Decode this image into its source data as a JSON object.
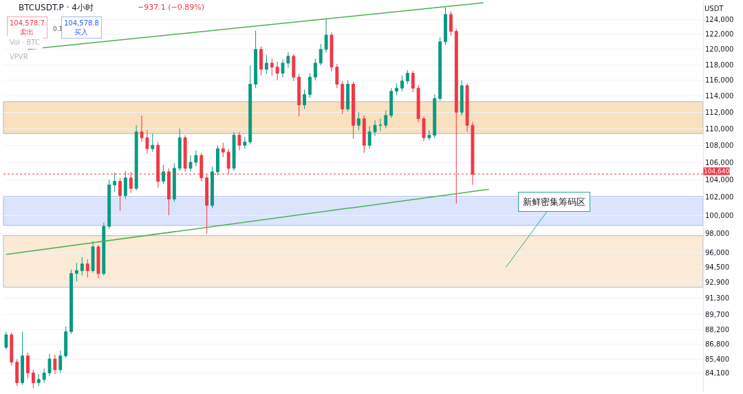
{
  "chart_data": {
    "type": "candlestick",
    "title": "BTCUSDT.P · 4小时",
    "subtitle": "−937.1 (−0.89%)",
    "ylabel": "USDT",
    "annotations": [
      "104,578.7\n卖出",
      "0.1",
      "104,578.8\n买入",
      "Vol · BTC",
      "VPVR",
      "新鲜密集筹码区"
    ],
    "categories": [
      null,
      null,
      null,
      null,
      null,
      null,
      null,
      null,
      null,
      null,
      null,
      null,
      null,
      null,
      null,
      null,
      null,
      null,
      null,
      null,
      null,
      null,
      null,
      null,
      null,
      null,
      null,
      null,
      null,
      null,
      null,
      null,
      null,
      null,
      null,
      null,
      null,
      null,
      null,
      null,
      null,
      null,
      null,
      null,
      null,
      null,
      null,
      null,
      null,
      null,
      null,
      null,
      null,
      null,
      null,
      null,
      null,
      null,
      null,
      null,
      null,
      null,
      null,
      null,
      null,
      null,
      null,
      null,
      null,
      null,
      null,
      null,
      null,
      null,
      null,
      null,
      null,
      null,
      null,
      null,
      null,
      null,
      null,
      null,
      null,
      null,
      null,
      null,
      null,
      null,
      null,
      null,
      null,
      null,
      null,
      null,
      null,
      null,
      null,
      null,
      null,
      null,
      null,
      null,
      null,
      null,
      null,
      null,
      null,
      null,
      null,
      null,
      null,
      null,
      null,
      null,
      null,
      null,
      null,
      null,
      null,
      null,
      null,
      null,
      null,
      null,
      null,
      null,
      null
    ],
    "colors": [
      "#089981",
      "#f23645",
      "#f23645",
      "#089981",
      "#f23645",
      "#f23645",
      "#089981",
      "#089981",
      "#089981",
      "#f23645",
      "#089981",
      "#089981",
      "#089981",
      "#089981",
      "#089981",
      "#f23645",
      "#089981",
      "#f23645",
      "#089981",
      "#089981",
      "#089981",
      "#f23645",
      "#089981",
      "#f23645",
      "#089981",
      "#f23645",
      "#f23645",
      "#089981",
      "#f23645",
      "#089981",
      "#f23645",
      "#089981",
      "#089981",
      "#f23645",
      "#089981",
      "#089981",
      "#f23645",
      "#f23645",
      "#089981",
      "#089981",
      "#f23645",
      "#f23645",
      "#089981",
      "#f23645",
      "#089981",
      "#089981",
      "#089981",
      "#f23645",
      "#089981",
      "#f23645",
      "#f23645",
      "#089981",
      "#089981",
      "#f23645",
      "#f23645",
      "#089981",
      "#089981",
      "#089981",
      "#089981",
      "#089981",
      "#f23645",
      "#f23645",
      "#f23645",
      "#089981",
      "#f23645",
      "#089981",
      "#f23645",
      "#089981",
      "#089981",
      "#089981",
      "#089981",
      "#089981",
      "#089981",
      "#089981",
      "#089981",
      "#f23645",
      "#f23645",
      "#f23645",
      "#089981",
      "#089981",
      "#089981",
      "#089981",
      "#f23645",
      "#f23645",
      "#089981",
      "#f23645",
      "#f23645",
      null,
      null,
      null,
      null,
      null,
      null,
      null,
      null,
      null,
      null,
      null,
      null,
      null,
      null,
      null,
      null,
      null,
      null,
      null,
      null,
      null,
      null,
      null,
      null,
      null,
      null,
      null,
      null,
      null,
      null,
      null,
      null,
      null,
      null,
      null,
      null,
      null,
      null,
      null,
      null,
      null,
      null
    ],
    "ohlc": [
      [
        86500,
        88000,
        86300,
        87700
      ],
      [
        87700,
        87900,
        84800,
        85100
      ],
      [
        85100,
        85400,
        82900,
        83200
      ],
      [
        83200,
        88000,
        83000,
        85700
      ],
      [
        85700,
        86000,
        83600,
        84100
      ],
      [
        84100,
        84400,
        82700,
        83200
      ],
      [
        83200,
        84000,
        82900,
        83500
      ],
      [
        83500,
        84500,
        83200,
        84100
      ],
      [
        84100,
        85900,
        83800,
        85400
      ],
      [
        85400,
        85800,
        84000,
        84400
      ],
      [
        84400,
        86200,
        84100,
        85700
      ],
      [
        85700,
        88500,
        85500,
        88000
      ],
      [
        88000,
        94200,
        87800,
        93800
      ],
      [
        93800,
        94900,
        93000,
        94100
      ],
      [
        94100,
        95500,
        93600,
        94800
      ],
      [
        94800,
        95300,
        93400,
        94100
      ],
      [
        94100,
        97200,
        93900,
        96600
      ],
      [
        96600,
        96800,
        93300,
        93800
      ],
      [
        93800,
        99200,
        93600,
        98800
      ],
      [
        98800,
        104000,
        98500,
        103400
      ],
      [
        103400,
        104800,
        102600,
        103800
      ],
      [
        103800,
        104200,
        100500,
        102200
      ],
      [
        102200,
        105000,
        101800,
        104200
      ],
      [
        104200,
        104900,
        102500,
        103000
      ],
      [
        103000,
        110400,
        102800,
        109600
      ],
      [
        109600,
        111600,
        108400,
        108900
      ],
      [
        108900,
        109800,
        107000,
        107600
      ],
      [
        107600,
        109400,
        107200,
        108000
      ],
      [
        108000,
        108400,
        103100,
        103800
      ],
      [
        103800,
        105700,
        103500,
        104900
      ],
      [
        104900,
        105300,
        100000,
        101800
      ],
      [
        101800,
        105900,
        101500,
        105300
      ],
      [
        105300,
        110000,
        105000,
        108900
      ],
      [
        108900,
        109200,
        104900,
        105300
      ],
      [
        105300,
        106800,
        104900,
        106000
      ],
      [
        106000,
        107400,
        105500,
        106800
      ],
      [
        106800,
        107100,
        103800,
        104200
      ],
      [
        104200,
        104600,
        98000,
        101100
      ],
      [
        101100,
        105500,
        100800,
        104900
      ],
      [
        104900,
        108000,
        104500,
        107600
      ],
      [
        107600,
        108300,
        106600,
        107200
      ],
      [
        107200,
        107600,
        104600,
        105300
      ],
      [
        105300,
        109600,
        105000,
        109200
      ],
      [
        109200,
        109600,
        107400,
        108000
      ],
      [
        108000,
        109000,
        107600,
        108400
      ],
      [
        108400,
        117900,
        108100,
        115500
      ],
      [
        115500,
        122500,
        115000,
        120000
      ],
      [
        120000,
        120400,
        116600,
        117400
      ],
      [
        117400,
        119300,
        116800,
        118200
      ],
      [
        118200,
        118800,
        116600,
        117700
      ],
      [
        117700,
        118400,
        116000,
        116900
      ],
      [
        116900,
        118700,
        116400,
        118200
      ],
      [
        118200,
        119600,
        117600,
        119100
      ],
      [
        119100,
        119400,
        115900,
        116400
      ],
      [
        116400,
        116800,
        111500,
        112900
      ],
      [
        112900,
        114800,
        112400,
        114200
      ],
      [
        114200,
        116900,
        113800,
        116400
      ],
      [
        116400,
        118800,
        116000,
        118200
      ],
      [
        118200,
        120700,
        117900,
        120000
      ],
      [
        120000,
        124100,
        119600,
        121900
      ],
      [
        121900,
        122300,
        117100,
        117700
      ],
      [
        117700,
        118100,
        115000,
        115500
      ],
      [
        115500,
        115900,
        111800,
        112400
      ],
      [
        112400,
        116000,
        112100,
        115500
      ],
      [
        115500,
        115800,
        108800,
        110400
      ],
      [
        110400,
        112000,
        109800,
        111200
      ],
      [
        111200,
        111600,
        107100,
        108000
      ],
      [
        108000,
        110300,
        107600,
        109600
      ],
      [
        109600,
        111000,
        109100,
        110400
      ],
      [
        110400,
        111200,
        109700,
        110400
      ],
      [
        110400,
        112200,
        110000,
        111600
      ],
      [
        111600,
        115000,
        111300,
        114600
      ],
      [
        114600,
        115600,
        114100,
        115000
      ],
      [
        115000,
        116600,
        114600,
        115900
      ],
      [
        115900,
        117300,
        115500,
        116900
      ],
      [
        116900,
        117200,
        114500,
        115000
      ],
      [
        115000,
        115400,
        110800,
        111200
      ],
      [
        111200,
        111500,
        108500,
        108900
      ],
      [
        108900,
        109800,
        108600,
        109200
      ],
      [
        109200,
        114200,
        108900,
        113700
      ],
      [
        113700,
        121600,
        113400,
        121000
      ],
      [
        121000,
        125700,
        120600,
        124700
      ],
      [
        124700,
        125100,
        121800,
        122400
      ],
      [
        122400,
        122800,
        101300,
        112000
      ],
      [
        112000,
        116000,
        111600,
        115300
      ],
      [
        115300,
        115600,
        109600,
        110400
      ],
      [
        110400,
        110800,
        103400,
        104600
      ],
      null,
      null,
      null,
      null,
      null,
      null,
      null,
      null,
      null,
      null,
      null,
      null,
      null,
      null,
      null,
      null,
      null,
      null,
      null,
      null,
      null,
      null,
      null,
      null,
      null,
      null,
      null,
      null,
      null,
      null,
      null,
      null,
      null,
      null,
      null,
      null,
      null,
      null,
      null,
      null,
      null,
      null
    ],
    "series": [
      {
        "type": "line",
        "color": "#4caf50",
        "values": [
          null,
          null,
          null,
          null,
          120000,
          null,
          null,
          null,
          null,
          null,
          null,
          null,
          null,
          null,
          null,
          null,
          null,
          null,
          null,
          null,
          null,
          null,
          null,
          null,
          null,
          null,
          null,
          null,
          null,
          null,
          null,
          null,
          null,
          null,
          null,
          null,
          null,
          null,
          null,
          null,
          null,
          null,
          null,
          null,
          null,
          null,
          null,
          null,
          null,
          null,
          null,
          null,
          null,
          null,
          null,
          null,
          null,
          null,
          null,
          null,
          null,
          null,
          null,
          null,
          null,
          null,
          null,
          null,
          null,
          null,
          null,
          null,
          null,
          null,
          null,
          null,
          null,
          null,
          null,
          null,
          null,
          null,
          null,
          null,
          null,
          null,
          null,
          null,
          126300,
          null,
          null,
          null,
          null,
          null,
          null,
          null,
          null,
          null,
          null,
          null,
          null,
          null,
          null,
          null,
          null,
          null,
          null,
          null,
          null,
          null,
          null,
          null,
          null,
          null,
          null,
          null,
          null,
          null,
          null,
          null,
          null,
          null,
          null,
          null,
          null,
          null,
          null,
          null,
          null
        ]
      },
      {
        "type": "line",
        "color": "#4caf50",
        "values": [
          95800,
          null,
          null,
          null,
          null,
          null,
          null,
          null,
          null,
          null,
          null,
          null,
          null,
          null,
          null,
          null,
          null,
          null,
          null,
          null,
          null,
          null,
          null,
          null,
          null,
          null,
          null,
          null,
          null,
          null,
          null,
          null,
          null,
          null,
          null,
          null,
          null,
          null,
          null,
          null,
          null,
          null,
          null,
          null,
          null,
          null,
          null,
          null,
          null,
          null,
          null,
          null,
          null,
          null,
          null,
          null,
          null,
          null,
          null,
          null,
          null,
          null,
          null,
          null,
          null,
          null,
          null,
          null,
          null,
          null,
          null,
          null,
          null,
          null,
          null,
          null,
          null,
          null,
          null,
          null,
          null,
          null,
          null,
          null,
          null,
          null,
          null,
          null,
          null,
          102900,
          null,
          null,
          null,
          null,
          null,
          null,
          null,
          null,
          null,
          null,
          null,
          null,
          null,
          null,
          null,
          null,
          null,
          null,
          null,
          null,
          null,
          null,
          null,
          null,
          null,
          null,
          null,
          null,
          null,
          null,
          null,
          null,
          null,
          null,
          null,
          null,
          null,
          null,
          null
        ]
      }
    ],
    "bands": [
      {
        "axis": "y",
        "from": 92400,
        "to": 97800,
        "color": "#fbe6cc"
      },
      {
        "axis": "y",
        "from": 98900,
        "to": 102100,
        "color": "#d3defb"
      },
      {
        "axis": "y",
        "from": 109400,
        "to": 113300,
        "color": "#f8d9b0"
      }
    ],
    "ref_lines": [
      {
        "axis": "y",
        "value": 104640,
        "label": "104,640",
        "color": "#f23645",
        "line_style": "dotted"
      }
    ],
    "log": "y",
    "ylim": [
      82300,
      126500
    ],
    "yticks": [
      {
        "value": 84100,
        "label": "84,100"
      },
      {
        "value": 85400,
        "label": "85,400"
      },
      {
        "value": 86800,
        "label": "86,800"
      },
      {
        "value": 88200,
        "label": "88,200"
      },
      {
        "value": 89700,
        "label": "89,700"
      },
      {
        "value": 91300,
        "label": "91,300"
      },
      {
        "value": 92900,
        "label": "92,900"
      },
      {
        "value": 94500,
        "label": "94,500"
      },
      {
        "value": 96000,
        "label": "96,000"
      },
      {
        "value": 98000,
        "label": "98,000"
      },
      {
        "value": 100000,
        "label": "100,000"
      },
      {
        "value": 102000,
        "label": "102,000"
      },
      {
        "value": 104000,
        "label": "104,000"
      },
      {
        "value": 106000,
        "label": "106,000"
      },
      {
        "value": 108000,
        "label": "108,000"
      },
      {
        "value": 110000,
        "label": "110,000"
      },
      {
        "value": 112000,
        "label": "112,000"
      },
      {
        "value": 114000,
        "label": "114,000"
      },
      {
        "value": 116000,
        "label": "116,000"
      },
      {
        "value": 118000,
        "label": "118,000"
      },
      {
        "value": 120000,
        "label": "120,000"
      },
      {
        "value": 122000,
        "label": "122,000"
      },
      {
        "value": 124000,
        "label": "124,000"
      }
    ],
    "grid": "y",
    "tick_labels": "y"
  }
}
